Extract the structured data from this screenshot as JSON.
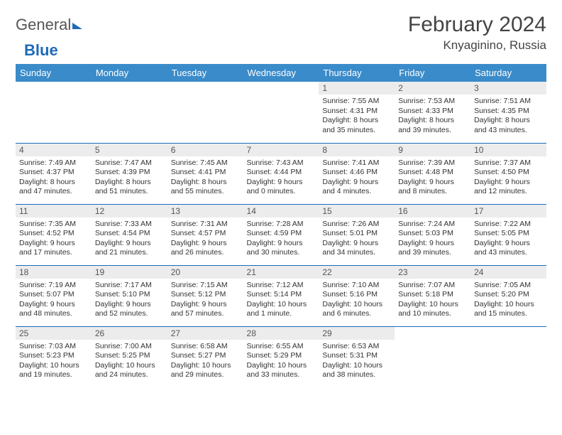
{
  "logo": {
    "text1": "General",
    "text2": "Blue"
  },
  "title": "February 2024",
  "location": "Knyaginino, Russia",
  "colors": {
    "header_bg": "#3a8bca",
    "header_text": "#ffffff",
    "daynum_bg": "#ececec",
    "border": "#1e6bb8",
    "logo_blue": "#1e6bb8",
    "text": "#333333"
  },
  "day_headers": [
    "Sunday",
    "Monday",
    "Tuesday",
    "Wednesday",
    "Thursday",
    "Friday",
    "Saturday"
  ],
  "weeks": [
    [
      null,
      null,
      null,
      null,
      {
        "n": "1",
        "sr": "7:55 AM",
        "ss": "4:31 PM",
        "dl": "8 hours and 35 minutes."
      },
      {
        "n": "2",
        "sr": "7:53 AM",
        "ss": "4:33 PM",
        "dl": "8 hours and 39 minutes."
      },
      {
        "n": "3",
        "sr": "7:51 AM",
        "ss": "4:35 PM",
        "dl": "8 hours and 43 minutes."
      }
    ],
    [
      {
        "n": "4",
        "sr": "7:49 AM",
        "ss": "4:37 PM",
        "dl": "8 hours and 47 minutes."
      },
      {
        "n": "5",
        "sr": "7:47 AM",
        "ss": "4:39 PM",
        "dl": "8 hours and 51 minutes."
      },
      {
        "n": "6",
        "sr": "7:45 AM",
        "ss": "4:41 PM",
        "dl": "8 hours and 55 minutes."
      },
      {
        "n": "7",
        "sr": "7:43 AM",
        "ss": "4:44 PM",
        "dl": "9 hours and 0 minutes."
      },
      {
        "n": "8",
        "sr": "7:41 AM",
        "ss": "4:46 PM",
        "dl": "9 hours and 4 minutes."
      },
      {
        "n": "9",
        "sr": "7:39 AM",
        "ss": "4:48 PM",
        "dl": "9 hours and 8 minutes."
      },
      {
        "n": "10",
        "sr": "7:37 AM",
        "ss": "4:50 PM",
        "dl": "9 hours and 12 minutes."
      }
    ],
    [
      {
        "n": "11",
        "sr": "7:35 AM",
        "ss": "4:52 PM",
        "dl": "9 hours and 17 minutes."
      },
      {
        "n": "12",
        "sr": "7:33 AM",
        "ss": "4:54 PM",
        "dl": "9 hours and 21 minutes."
      },
      {
        "n": "13",
        "sr": "7:31 AM",
        "ss": "4:57 PM",
        "dl": "9 hours and 26 minutes."
      },
      {
        "n": "14",
        "sr": "7:28 AM",
        "ss": "4:59 PM",
        "dl": "9 hours and 30 minutes."
      },
      {
        "n": "15",
        "sr": "7:26 AM",
        "ss": "5:01 PM",
        "dl": "9 hours and 34 minutes."
      },
      {
        "n": "16",
        "sr": "7:24 AM",
        "ss": "5:03 PM",
        "dl": "9 hours and 39 minutes."
      },
      {
        "n": "17",
        "sr": "7:22 AM",
        "ss": "5:05 PM",
        "dl": "9 hours and 43 minutes."
      }
    ],
    [
      {
        "n": "18",
        "sr": "7:19 AM",
        "ss": "5:07 PM",
        "dl": "9 hours and 48 minutes."
      },
      {
        "n": "19",
        "sr": "7:17 AM",
        "ss": "5:10 PM",
        "dl": "9 hours and 52 minutes."
      },
      {
        "n": "20",
        "sr": "7:15 AM",
        "ss": "5:12 PM",
        "dl": "9 hours and 57 minutes."
      },
      {
        "n": "21",
        "sr": "7:12 AM",
        "ss": "5:14 PM",
        "dl": "10 hours and 1 minute."
      },
      {
        "n": "22",
        "sr": "7:10 AM",
        "ss": "5:16 PM",
        "dl": "10 hours and 6 minutes."
      },
      {
        "n": "23",
        "sr": "7:07 AM",
        "ss": "5:18 PM",
        "dl": "10 hours and 10 minutes."
      },
      {
        "n": "24",
        "sr": "7:05 AM",
        "ss": "5:20 PM",
        "dl": "10 hours and 15 minutes."
      }
    ],
    [
      {
        "n": "25",
        "sr": "7:03 AM",
        "ss": "5:23 PM",
        "dl": "10 hours and 19 minutes."
      },
      {
        "n": "26",
        "sr": "7:00 AM",
        "ss": "5:25 PM",
        "dl": "10 hours and 24 minutes."
      },
      {
        "n": "27",
        "sr": "6:58 AM",
        "ss": "5:27 PM",
        "dl": "10 hours and 29 minutes."
      },
      {
        "n": "28",
        "sr": "6:55 AM",
        "ss": "5:29 PM",
        "dl": "10 hours and 33 minutes."
      },
      {
        "n": "29",
        "sr": "6:53 AM",
        "ss": "5:31 PM",
        "dl": "10 hours and 38 minutes."
      },
      null,
      null
    ]
  ],
  "labels": {
    "sunrise": "Sunrise: ",
    "sunset": "Sunset: ",
    "daylight": "Daylight: "
  }
}
